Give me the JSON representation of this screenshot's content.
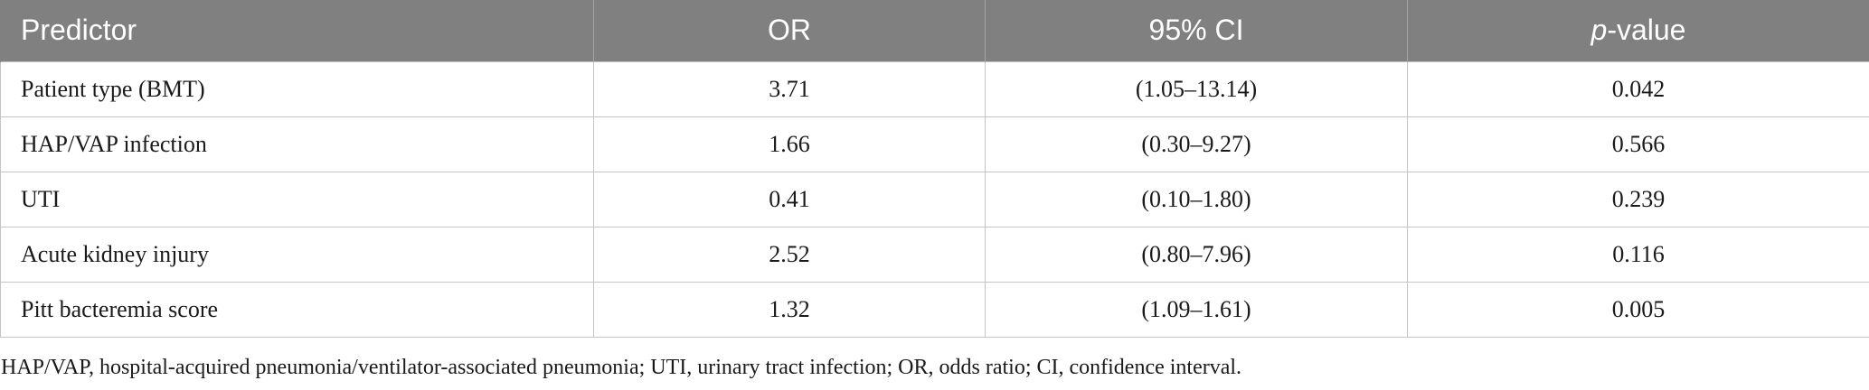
{
  "table": {
    "headers": {
      "predictor": "Predictor",
      "or": "OR",
      "ci": "95% CI",
      "p_italic": "p",
      "p_rest": "-value"
    },
    "rows": [
      {
        "predictor": "Patient type (BMT)",
        "or": "3.71",
        "ci": "(1.05–13.14)",
        "p": "0.042"
      },
      {
        "predictor": "HAP/VAP infection",
        "or": "1.66",
        "ci": "(0.30–9.27)",
        "p": "0.566"
      },
      {
        "predictor": "UTI",
        "or": "0.41",
        "ci": "(0.10–1.80)",
        "p": "0.239"
      },
      {
        "predictor": "Acute kidney injury",
        "or": "2.52",
        "ci": "(0.80–7.96)",
        "p": "0.116"
      },
      {
        "predictor": "Pitt bacteremia score",
        "or": "1.32",
        "ci": "(1.09–1.61)",
        "p": "0.005"
      }
    ],
    "colors": {
      "header_bg": "#808080",
      "header_text": "#ffffff",
      "grid": "#c4c4c4"
    }
  },
  "footnote": "HAP/VAP, hospital-acquired pneumonia/ventilator-associated pneumonia; UTI, urinary tract infection; OR, odds ratio; CI, confidence interval."
}
